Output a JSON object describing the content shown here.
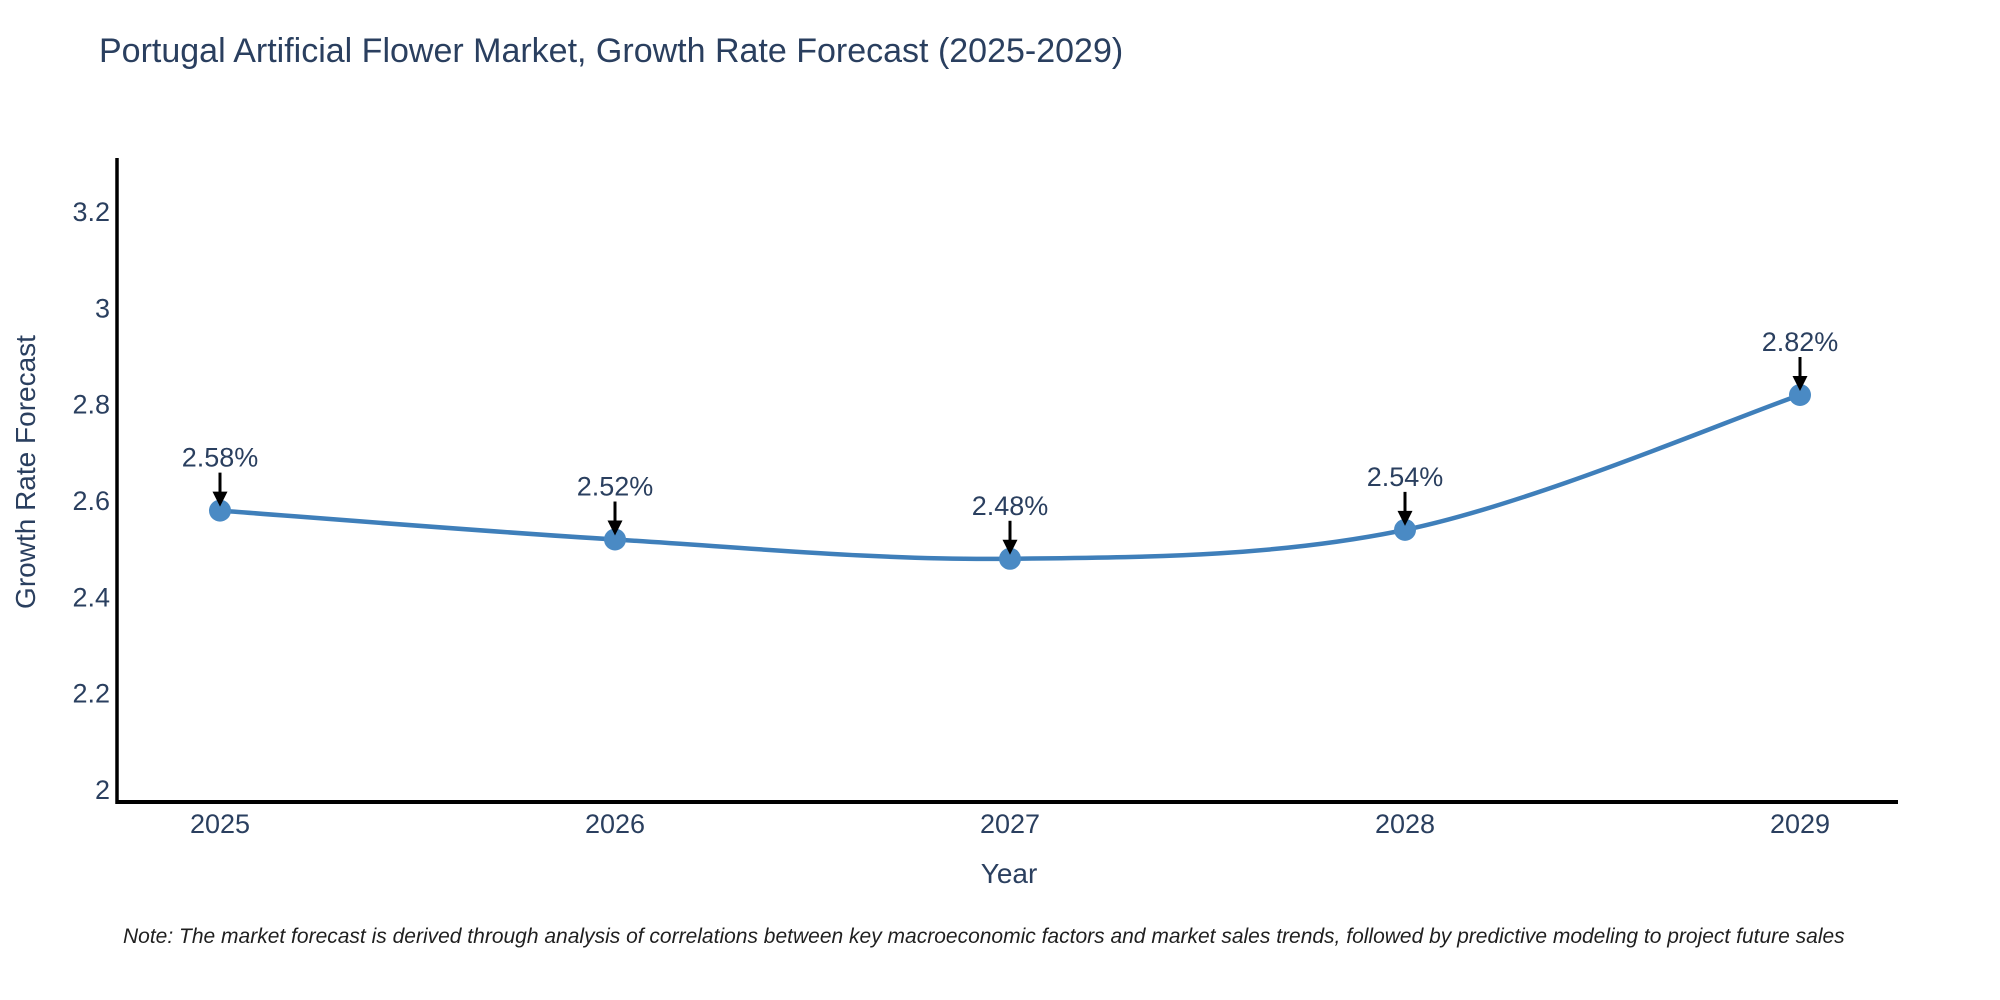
{
  "chart_data": {
    "type": "line",
    "title": "Portugal Artificial Flower Market, Growth Rate Forecast (2025-2029)",
    "xlabel": "Year",
    "ylabel": "Growth Rate Forecast",
    "x": [
      2025,
      2026,
      2027,
      2028,
      2029
    ],
    "series": [
      {
        "name": "Growth Rate Forecast",
        "values": [
          2.58,
          2.52,
          2.48,
          2.54,
          2.82
        ]
      }
    ],
    "data_labels": [
      "2.58%",
      "2.52%",
      "2.48%",
      "2.54%",
      "2.82%"
    ],
    "yticks": [
      2,
      2.2,
      2.4,
      2.6,
      2.8,
      3,
      3.2
    ],
    "ylim": [
      1.97,
      3.31
    ],
    "grid": false,
    "legend": null,
    "line_shape": "spline",
    "marker": "circle",
    "annotation_arrow_direction": "down"
  },
  "note": {
    "text": "Note: The market forecast is derived through analysis of correlations between key macroeconomic factors and market sales trends, followed by predictive modeling to project future sales"
  },
  "colors": {
    "line": "#3f7fba",
    "marker": "#4a8ac4",
    "title_text": "#2a3f5f",
    "axis_text": "#2a3f5f",
    "axis_line": "#000000",
    "annotation_text": "#2a3f5f",
    "arrow": "#000000",
    "note_text": "#1f1f1f",
    "background": "#ffffff"
  }
}
